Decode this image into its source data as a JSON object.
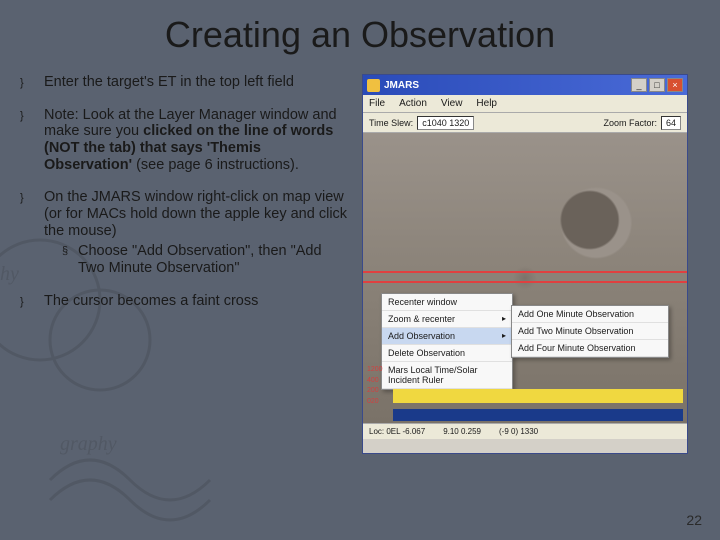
{
  "title": "Creating an Observation",
  "bullets": [
    {
      "text": "Enter the target's ET in the top left field"
    },
    {
      "html": "Note:  Look at the Layer Manager window and make sure you <b>clicked on the line of words (NOT the tab)  that says 'Themis Observation'</b> (see page 6 instructions)."
    },
    {
      "text": "On the JMARS window right-click on map view (or for MACs hold down the apple key and click the mouse)",
      "sub": "Choose \"Add Observation\", then \"Add Two Minute Observation\""
    },
    {
      "text": "The cursor becomes a faint cross"
    }
  ],
  "jmars": {
    "title": "JMARS",
    "menu": [
      "File",
      "Action",
      "View",
      "Help"
    ],
    "timeSlewLabel": "Time Slew:",
    "timeSlewValue": "c1040 1320",
    "zoomLabel": "Zoom Factor:",
    "zoomValue": "64",
    "contextMenu": [
      "Recenter window",
      "Zoom & recenter",
      "Add Observation",
      "Delete Observation",
      "Mars Local Time/Solar Incident Ruler"
    ],
    "submenu": [
      "Add One Minute Observation",
      "Add Two Minute Observation",
      "Add Four Minute Observation"
    ],
    "status": [
      "Loc: 0EL  -6.067",
      "9.10 0.259",
      "(-9 0) 1330"
    ],
    "stripNums": [
      "1200",
      "400",
      "200",
      "020"
    ]
  },
  "pageNumber": "22",
  "colors": {
    "slideBg": "#5a6270",
    "winChrome": "#d4d0c8",
    "titlebarGradient": [
      "#2a4bb8",
      "#4a6bd8"
    ],
    "redLine": "#e04040",
    "yellowBand": "#f0d840",
    "blueBand": "#1a3a8a"
  }
}
